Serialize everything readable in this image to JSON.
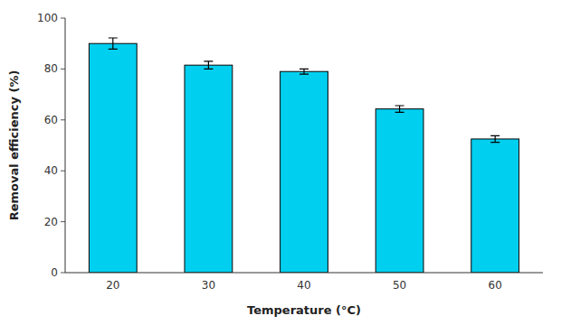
{
  "chart_data": {
    "type": "bar",
    "categories": [
      "20",
      "30",
      "40",
      "50",
      "60"
    ],
    "values": [
      90.0,
      81.5,
      79.0,
      64.3,
      52.5
    ],
    "errors": [
      2.2,
      1.5,
      1.0,
      1.3,
      1.3
    ],
    "color": "#00CFEF",
    "xlabel": "Temperature (°C)",
    "ylabel": "Removal efficiency (%)",
    "ylim": [
      0,
      100
    ],
    "yticks": [
      0,
      20,
      40,
      60,
      80,
      100
    ],
    "grid": false
  }
}
